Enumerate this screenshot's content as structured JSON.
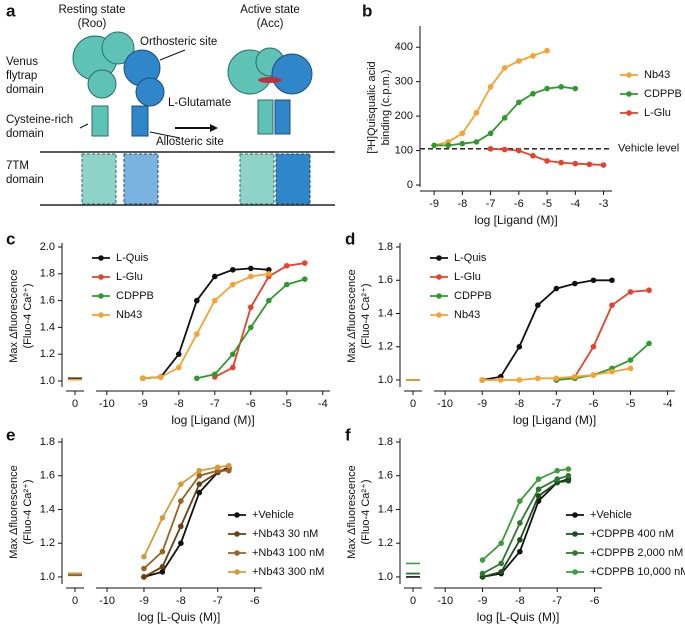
{
  "diagram": {
    "panel": "a",
    "resting_state": "Resting state",
    "resting_code": "(Roo)",
    "active_state": "Active state",
    "active_code": "(Acc)",
    "orthosteric": "Orthosteric site",
    "vft": [
      "Venus",
      "flytrap",
      "domain"
    ],
    "glutamate": "L-Glutamate",
    "crd": [
      "Cysteine-rich",
      "domain"
    ],
    "allosteric": "Allosteric site",
    "tm": [
      "7TM",
      "domain"
    ]
  },
  "chart_data": [
    {
      "type": "line",
      "panel": "b",
      "xlabel": "log [Ligand (M)]",
      "ylabel": [
        "[³H]Quisqualic acid",
        "binding (c.p.m.)"
      ],
      "xlim": [
        -9.5,
        -2.7
      ],
      "xticks": [
        -9,
        -8,
        -7,
        -6,
        -5,
        -4,
        -3
      ],
      "ylim": [
        0,
        450
      ],
      "yticks": [
        0,
        100,
        200,
        300,
        400
      ],
      "legend": "right",
      "hline": {
        "value": 105,
        "label": "Vehicle level"
      },
      "series": [
        {
          "name": "Nb43",
          "color": "#f7a22e",
          "x": [
            -9,
            -8.5,
            -8,
            -7.5,
            -7,
            -6.5,
            -6,
            -5.5,
            -5
          ],
          "values": [
            115,
            125,
            150,
            210,
            285,
            340,
            360,
            375,
            390
          ]
        },
        {
          "name": "CDPPB",
          "color": "#2e9a2e",
          "x": [
            -9,
            -8.5,
            -8,
            -7.5,
            -7,
            -6.5,
            -6,
            -5.5,
            -5,
            -4.5,
            -4
          ],
          "values": [
            115,
            115,
            120,
            125,
            150,
            195,
            240,
            265,
            280,
            285,
            280
          ]
        },
        {
          "name": "L-Glu",
          "color": "#e8402a",
          "x": [
            -7,
            -6.5,
            -6,
            -5.5,
            -5,
            -4.5,
            -4,
            -3.5,
            -3
          ],
          "values": [
            105,
            103,
            100,
            85,
            70,
            65,
            62,
            60,
            58
          ]
        }
      ]
    },
    {
      "type": "line",
      "panel": "c",
      "xlabel": "log [Ligand (M)]",
      "ylabel": [
        "Max Δfluorescence",
        "(Fluo-4 Ca²⁺)"
      ],
      "xlim": [
        -10.3,
        -3.8
      ],
      "xticks": [
        -10,
        -9,
        -8,
        -7,
        -6,
        -5,
        -4
      ],
      "break_lim": [
        -0.6,
        0.6
      ],
      "break_tick": 0,
      "ylim": [
        0.97,
        2.0
      ],
      "yticks": [
        {
          "value": 1.0,
          "label": "1.0"
        },
        {
          "value": 1.2,
          "label": "1.2"
        },
        {
          "value": 1.4,
          "label": "1.4"
        },
        {
          "value": 1.6,
          "label": "1.6"
        },
        {
          "value": 1.8,
          "label": "1.8"
        },
        {
          "value": 2.0,
          "label": "2.0"
        }
      ],
      "legend": "top-left",
      "series": [
        {
          "name": "L-Quis",
          "color": "#111111",
          "baseline": 1.02,
          "x": [
            -9,
            -8.5,
            -8,
            -7.5,
            -7,
            -6.5,
            -6,
            -5.5
          ],
          "values": [
            1.02,
            1.03,
            1.2,
            1.6,
            1.78,
            1.83,
            1.84,
            1.83
          ]
        },
        {
          "name": "L-Glu",
          "color": "#e8402a",
          "baseline": 1.01,
          "x": [
            -7,
            -6.5,
            -6,
            -5.5,
            -5,
            -4.5
          ],
          "values": [
            1.03,
            1.1,
            1.55,
            1.78,
            1.86,
            1.88
          ]
        },
        {
          "name": "CDPPB",
          "color": "#2e9a2e",
          "baseline": 1.01,
          "x": [
            -7.5,
            -7,
            -6.5,
            -6,
            -5.5,
            -5,
            -4.5
          ],
          "values": [
            1.02,
            1.05,
            1.2,
            1.4,
            1.6,
            1.72,
            1.76
          ]
        },
        {
          "name": "Nb43",
          "color": "#f7a22e",
          "baseline": 1.01,
          "x": [
            -9,
            -8.5,
            -8,
            -7.5,
            -7,
            -6.5,
            -6,
            -5.5
          ],
          "values": [
            1.02,
            1.03,
            1.1,
            1.35,
            1.6,
            1.72,
            1.78,
            1.8
          ]
        }
      ]
    },
    {
      "type": "line",
      "panel": "d",
      "xlabel": "log [Ligand (M)]",
      "ylabel": [
        "Max Δfluorescence",
        "(Fluo-4 Ca²⁺)"
      ],
      "xlim": [
        -10.3,
        -3.8
      ],
      "xticks": [
        -10,
        -9,
        -8,
        -7,
        -6,
        -5,
        -4
      ],
      "break_lim": [
        -0.6,
        0.6
      ],
      "break_tick": 0,
      "ylim": [
        0.97,
        1.8
      ],
      "yticks": [
        {
          "value": 1.0,
          "label": "1.0"
        },
        {
          "value": 1.2,
          "label": "1.2"
        },
        {
          "value": 1.4,
          "label": "1.4"
        },
        {
          "value": 1.6,
          "label": "1.6"
        },
        {
          "value": 1.8,
          "label": "1.8"
        }
      ],
      "legend": "top-left",
      "series": [
        {
          "name": "L-Quis",
          "color": "#111111",
          "baseline": 1.0,
          "x": [
            -9,
            -8.5,
            -8,
            -7.5,
            -7,
            -6.5,
            -6,
            -5.5
          ],
          "values": [
            1.0,
            1.02,
            1.2,
            1.45,
            1.55,
            1.58,
            1.6,
            1.6
          ]
        },
        {
          "name": "L-Glu",
          "color": "#e8402a",
          "baseline": 1.0,
          "x": [
            -7,
            -6.5,
            -6,
            -5.5,
            -5,
            -4.5
          ],
          "values": [
            1.0,
            1.02,
            1.2,
            1.45,
            1.53,
            1.54
          ]
        },
        {
          "name": "CDPPB",
          "color": "#2e9a2e",
          "baseline": 1.0,
          "x": [
            -7,
            -6.5,
            -6,
            -5.5,
            -5,
            -4.5
          ],
          "values": [
            1.0,
            1.01,
            1.03,
            1.07,
            1.12,
            1.22
          ]
        },
        {
          "name": "Nb43",
          "color": "#f7a22e",
          "baseline": 1.0,
          "x": [
            -9,
            -8.5,
            -8,
            -7.5,
            -7,
            -6.5,
            -6,
            -5.5,
            -5
          ],
          "values": [
            1.0,
            1.0,
            1.0,
            1.01,
            1.01,
            1.02,
            1.03,
            1.05,
            1.07
          ]
        }
      ]
    },
    {
      "type": "line",
      "panel": "e",
      "xlabel": "log [L-Quis (M)]",
      "ylabel": [
        "Max Δfluorescence",
        "(Fluo-4 Ca²⁺)"
      ],
      "xlim": [
        -10.3,
        -5.8
      ],
      "xticks": [
        -10,
        -9,
        -8,
        -7,
        -6
      ],
      "break_lim": [
        -0.6,
        0.6
      ],
      "break_tick": 0,
      "ylim": [
        0.97,
        1.8
      ],
      "yticks": [
        {
          "value": 1.0,
          "label": "1.0"
        },
        {
          "value": 1.2,
          "label": "1.2"
        },
        {
          "value": 1.4,
          "label": "1.4"
        },
        {
          "value": 1.6,
          "label": "1.6"
        },
        {
          "value": 1.8,
          "label": "1.8"
        }
      ],
      "legend": "right",
      "series": [
        {
          "name": "+Vehicle",
          "color": "#111111",
          "baseline": 1.02,
          "x": [
            -9,
            -8.5,
            -8,
            -7.5,
            -7,
            -6.7
          ],
          "values": [
            1.0,
            1.03,
            1.2,
            1.5,
            1.62,
            1.65
          ]
        },
        {
          "name": "+Nb43 30 nM",
          "color": "#6b3f10",
          "baseline": 1.01,
          "x": [
            -9,
            -8.5,
            -8,
            -7.5,
            -7,
            -6.7
          ],
          "values": [
            1.0,
            1.06,
            1.3,
            1.55,
            1.62,
            1.64
          ]
        },
        {
          "name": "+Nb43 100 nM",
          "color": "#9c6120",
          "baseline": 1.01,
          "x": [
            -9,
            -8.5,
            -8,
            -7.5,
            -7,
            -6.7
          ],
          "values": [
            1.05,
            1.15,
            1.45,
            1.6,
            1.63,
            1.63
          ]
        },
        {
          "name": "+Nb43 300 nM",
          "color": "#d89a38",
          "baseline": 1.02,
          "x": [
            -9,
            -8.5,
            -8,
            -7.5,
            -7,
            -6.7
          ],
          "values": [
            1.12,
            1.35,
            1.55,
            1.63,
            1.65,
            1.66
          ]
        }
      ]
    },
    {
      "type": "line",
      "panel": "f",
      "xlabel": "log [L-Quis (M)]",
      "ylabel": [
        "Max Δfluorescence",
        "(Fluo-4 Ca²⁺)"
      ],
      "xlim": [
        -10.3,
        -5.8
      ],
      "xticks": [
        -10,
        -9,
        -8,
        -7,
        -6
      ],
      "break_lim": [
        -0.6,
        0.6
      ],
      "break_tick": 0,
      "ylim": [
        0.97,
        1.8
      ],
      "yticks": [
        {
          "value": 1.0,
          "label": "1.0"
        },
        {
          "value": 1.2,
          "label": "1.2"
        },
        {
          "value": 1.4,
          "label": "1.4"
        },
        {
          "value": 1.6,
          "label": "1.6"
        },
        {
          "value": 1.8,
          "label": "1.8"
        }
      ],
      "legend": "right",
      "series": [
        {
          "name": "+Vehicle",
          "color": "#111111",
          "baseline": 1.0,
          "x": [
            -9,
            -8.5,
            -8,
            -7.5,
            -7,
            -6.7
          ],
          "values": [
            1.0,
            1.02,
            1.15,
            1.45,
            1.56,
            1.58
          ]
        },
        {
          "name": "+CDPPB 400 nM",
          "color": "#1d4f1d",
          "baseline": 1.02,
          "x": [
            -9,
            -8.5,
            -8,
            -7.5,
            -7,
            -6.7
          ],
          "values": [
            1.0,
            1.03,
            1.22,
            1.48,
            1.56,
            1.57
          ]
        },
        {
          "name": "+CDPPB 2,000 nM",
          "color": "#2c7a2c",
          "baseline": 1.02,
          "x": [
            -9,
            -8.5,
            -8,
            -7.5,
            -7,
            -6.7
          ],
          "values": [
            1.02,
            1.08,
            1.32,
            1.52,
            1.58,
            1.6
          ]
        },
        {
          "name": "+CDPPB 10,000 nM",
          "color": "#3a9e3a",
          "baseline": 1.08,
          "x": [
            -9,
            -8.5,
            -8,
            -7.5,
            -7,
            -6.7
          ],
          "values": [
            1.1,
            1.2,
            1.45,
            1.58,
            1.63,
            1.64
          ]
        }
      ]
    }
  ]
}
